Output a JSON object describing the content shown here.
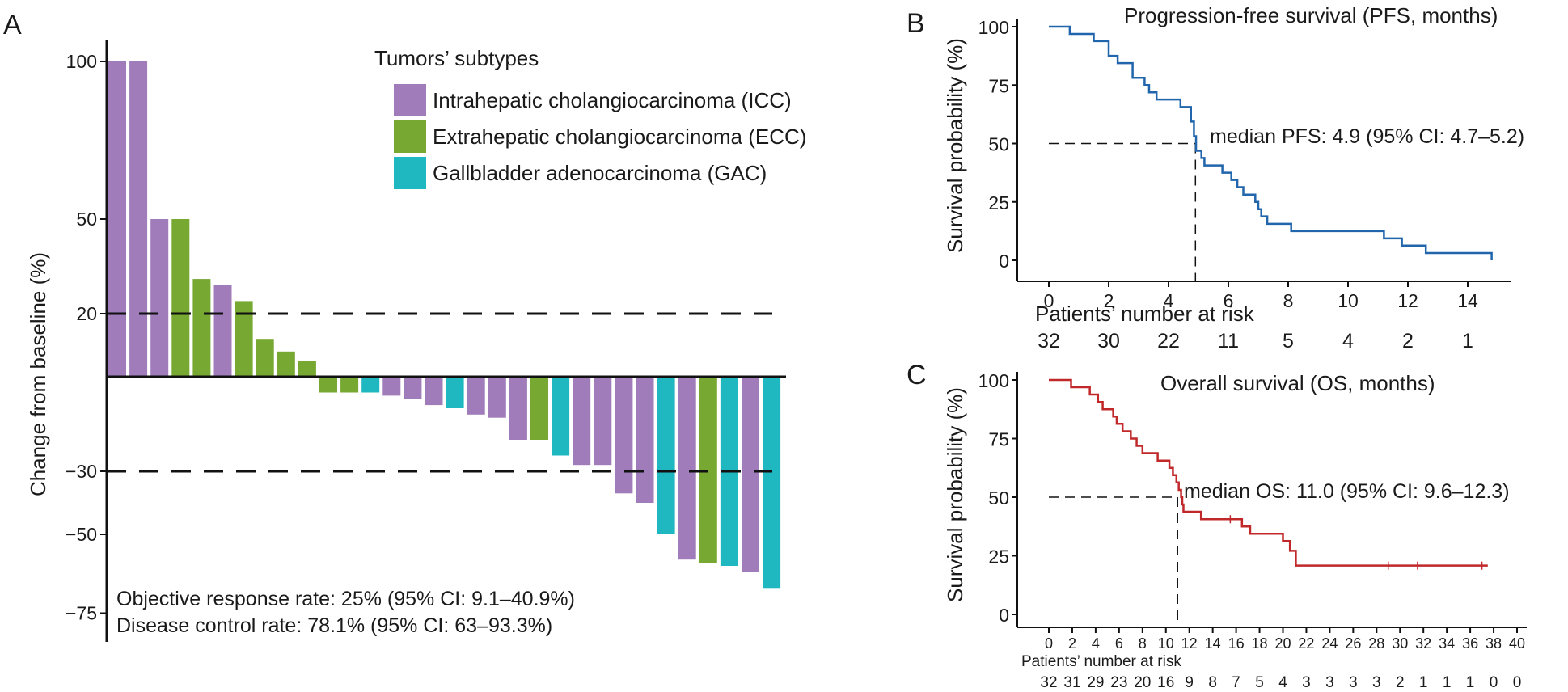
{
  "panels": {
    "a": "A",
    "b": "B",
    "c": "C"
  },
  "chart_data": [
    {
      "panel": "A",
      "type": "bar",
      "ylabel": "Change from baseline (%)",
      "yticks": [
        100,
        50,
        20,
        -30,
        -50,
        -75
      ],
      "ylim": [
        -83,
        105
      ],
      "reference_lines": [
        20,
        -30
      ],
      "legend": {
        "title": "Tumors’ subtypes",
        "placement": "top-right",
        "entries": [
          {
            "key": "ICC",
            "label": "Intrahepatic cholangiocarcinoma (ICC)",
            "color": "#a07cba"
          },
          {
            "key": "ECC",
            "label": "Extrahepatic cholangiocarcinoma (ECC)",
            "color": "#76a832"
          },
          {
            "key": "GAC",
            "label": "Gallbladder adenocarcinoma (GAC)",
            "color": "#1fb8c0"
          }
        ]
      },
      "bars": [
        {
          "subtype": "ICC",
          "value": 100
        },
        {
          "subtype": "ICC",
          "value": 100
        },
        {
          "subtype": "ICC",
          "value": 50
        },
        {
          "subtype": "ECC",
          "value": 50
        },
        {
          "subtype": "ECC",
          "value": 31
        },
        {
          "subtype": "ICC",
          "value": 29
        },
        {
          "subtype": "ECC",
          "value": 24
        },
        {
          "subtype": "ECC",
          "value": 12
        },
        {
          "subtype": "ECC",
          "value": 8
        },
        {
          "subtype": "ECC",
          "value": 5
        },
        {
          "subtype": "ECC",
          "value": -5
        },
        {
          "subtype": "ECC",
          "value": -5
        },
        {
          "subtype": "GAC",
          "value": -5
        },
        {
          "subtype": "ICC",
          "value": -6
        },
        {
          "subtype": "ICC",
          "value": -7
        },
        {
          "subtype": "ICC",
          "value": -9
        },
        {
          "subtype": "GAC",
          "value": -10
        },
        {
          "subtype": "ICC",
          "value": -12
        },
        {
          "subtype": "ICC",
          "value": -13
        },
        {
          "subtype": "ICC",
          "value": -20
        },
        {
          "subtype": "ECC",
          "value": -20
        },
        {
          "subtype": "GAC",
          "value": -25
        },
        {
          "subtype": "ICC",
          "value": -28
        },
        {
          "subtype": "ICC",
          "value": -28
        },
        {
          "subtype": "ICC",
          "value": -37
        },
        {
          "subtype": "ICC",
          "value": -40
        },
        {
          "subtype": "GAC",
          "value": -50
        },
        {
          "subtype": "ICC",
          "value": -58
        },
        {
          "subtype": "ECC",
          "value": -59
        },
        {
          "subtype": "GAC",
          "value": -60
        },
        {
          "subtype": "ICC",
          "value": -62
        },
        {
          "subtype": "GAC",
          "value": -67
        }
      ],
      "annotations": [
        "Objective response rate: 25% (95% CI: 9.1–40.9%)",
        "Disease control rate: 78.1% (95% CI: 63–93.3%)"
      ]
    },
    {
      "panel": "B",
      "type": "line",
      "title": "Progression-free survival (PFS, months)",
      "ylabel": "Survival probability (%)",
      "xlim": [
        0,
        15
      ],
      "ylim": [
        0,
        100
      ],
      "xticks": [
        0,
        2,
        4,
        6,
        8,
        10,
        12,
        14
      ],
      "yticks": [
        0,
        25,
        50,
        75,
        100
      ],
      "color": "#2166ac",
      "median_x": 4.9,
      "median_label": "median PFS: 4.9 (95% CI: 4.7–5.2)",
      "steps": [
        [
          0,
          100
        ],
        [
          0.7,
          96.9
        ],
        [
          1.5,
          93.8
        ],
        [
          2.0,
          87.5
        ],
        [
          2.3,
          84.4
        ],
        [
          2.8,
          78.1
        ],
        [
          3.2,
          75.0
        ],
        [
          3.35,
          71.9
        ],
        [
          3.6,
          68.8
        ],
        [
          4.4,
          65.6
        ],
        [
          4.75,
          59.4
        ],
        [
          4.85,
          53.1
        ],
        [
          4.92,
          46.9
        ],
        [
          5.1,
          43.8
        ],
        [
          5.2,
          40.6
        ],
        [
          5.8,
          37.5
        ],
        [
          6.1,
          34.4
        ],
        [
          6.3,
          31.3
        ],
        [
          6.5,
          28.1
        ],
        [
          6.9,
          25.0
        ],
        [
          7.0,
          21.9
        ],
        [
          7.1,
          18.8
        ],
        [
          7.3,
          15.6
        ],
        [
          8.1,
          12.5
        ],
        [
          11.2,
          9.4
        ],
        [
          11.8,
          6.3
        ],
        [
          12.6,
          3.1
        ],
        [
          14.8,
          3.1
        ],
        [
          14.8,
          0
        ]
      ],
      "risk_title": "Patients’ number at risk",
      "risk": [
        "32",
        "30",
        "22",
        "11",
        "5",
        "4",
        "2",
        "1"
      ]
    },
    {
      "panel": "C",
      "type": "line",
      "title": "Overall survival (OS, months)",
      "ylabel": "Survival probability (%)",
      "xlim": [
        0,
        40
      ],
      "ylim": [
        0,
        100
      ],
      "xticks": [
        0,
        2,
        4,
        6,
        8,
        10,
        12,
        14,
        16,
        18,
        20,
        22,
        24,
        26,
        28,
        30,
        32,
        34,
        36,
        38,
        40
      ],
      "yticks": [
        0,
        25,
        50,
        75,
        100
      ],
      "color": "#c0282a",
      "median_x": 11.0,
      "median_label": "median OS: 11.0 (95% CI: 9.6–12.3)",
      "steps": [
        [
          0,
          100
        ],
        [
          1.9,
          96.9
        ],
        [
          3.5,
          93.8
        ],
        [
          4.2,
          90.6
        ],
        [
          4.6,
          87.5
        ],
        [
          5.5,
          84.4
        ],
        [
          5.8,
          81.3
        ],
        [
          6.3,
          78.1
        ],
        [
          7.0,
          75.0
        ],
        [
          7.5,
          71.9
        ],
        [
          8.0,
          68.8
        ],
        [
          9.3,
          65.6
        ],
        [
          10.3,
          62.5
        ],
        [
          10.6,
          59.4
        ],
        [
          10.9,
          56.3
        ],
        [
          11.1,
          53.1
        ],
        [
          11.3,
          50.0
        ],
        [
          11.4,
          46.9
        ],
        [
          11.5,
          43.8
        ],
        [
          13.0,
          40.6
        ],
        [
          16.5,
          37.5
        ],
        [
          17.2,
          34.4
        ],
        [
          20.0,
          31.3
        ],
        [
          20.6,
          27.1
        ],
        [
          21.1,
          20.8
        ],
        [
          37.5,
          20.8
        ]
      ],
      "censor_x": [
        15.5,
        29.0,
        31.5,
        37.0
      ],
      "risk_title": "Patients’ number at risk",
      "risk": [
        "32",
        "31",
        "29",
        "23",
        "20",
        "16",
        "9",
        "8",
        "7",
        "5",
        "4",
        "3",
        "3",
        "3",
        "3",
        "2",
        "1",
        "1",
        "1",
        "0",
        "0"
      ]
    }
  ]
}
